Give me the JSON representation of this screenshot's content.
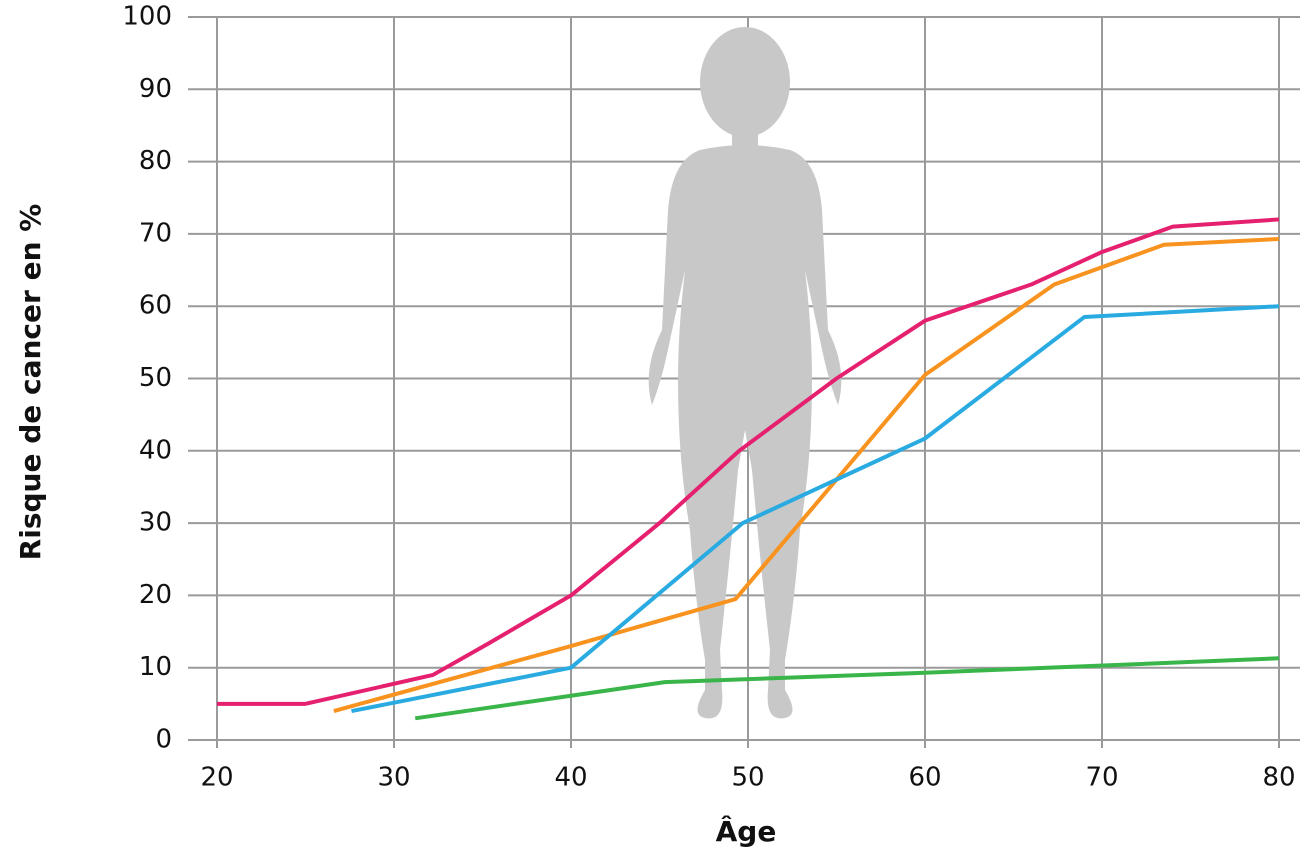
{
  "chart_data": {
    "type": "line",
    "x_label": "Âge",
    "y_label": "Risque de cancer en %",
    "xlim": [
      20,
      80
    ],
    "xticks": [
      20,
      30,
      40,
      50,
      60,
      70,
      80
    ],
    "ylim": [
      0,
      100
    ],
    "yticks": [
      0,
      10,
      20,
      30,
      40,
      50,
      60,
      70,
      80,
      90,
      100
    ],
    "grid": true,
    "series": [
      {
        "color": "#e5206f",
        "x": [
          20,
          25,
          32.2,
          35.3,
          40,
          45,
          49.5,
          55,
          60,
          66,
          70,
          74,
          80
        ],
        "values": [
          5,
          5,
          9,
          13.3,
          20,
          30,
          40,
          50,
          58,
          63,
          67.5,
          71,
          72
        ]
      },
      {
        "color": "#f7931e",
        "x": [
          26.6,
          40,
          49.3,
          60,
          67.3,
          73.5,
          80
        ],
        "values": [
          4,
          13,
          19.5,
          50.5,
          63,
          68.5,
          69.3
        ]
      },
      {
        "color": "#29abe2",
        "x": [
          27.6,
          40,
          49.7,
          60,
          69,
          80
        ],
        "values": [
          4,
          10,
          30,
          41.7,
          58.5,
          60
        ]
      },
      {
        "color": "#39b54a",
        "x": [
          31.2,
          45.3,
          60,
          80
        ],
        "values": [
          3,
          8,
          9.3,
          11.3
        ]
      }
    ]
  }
}
